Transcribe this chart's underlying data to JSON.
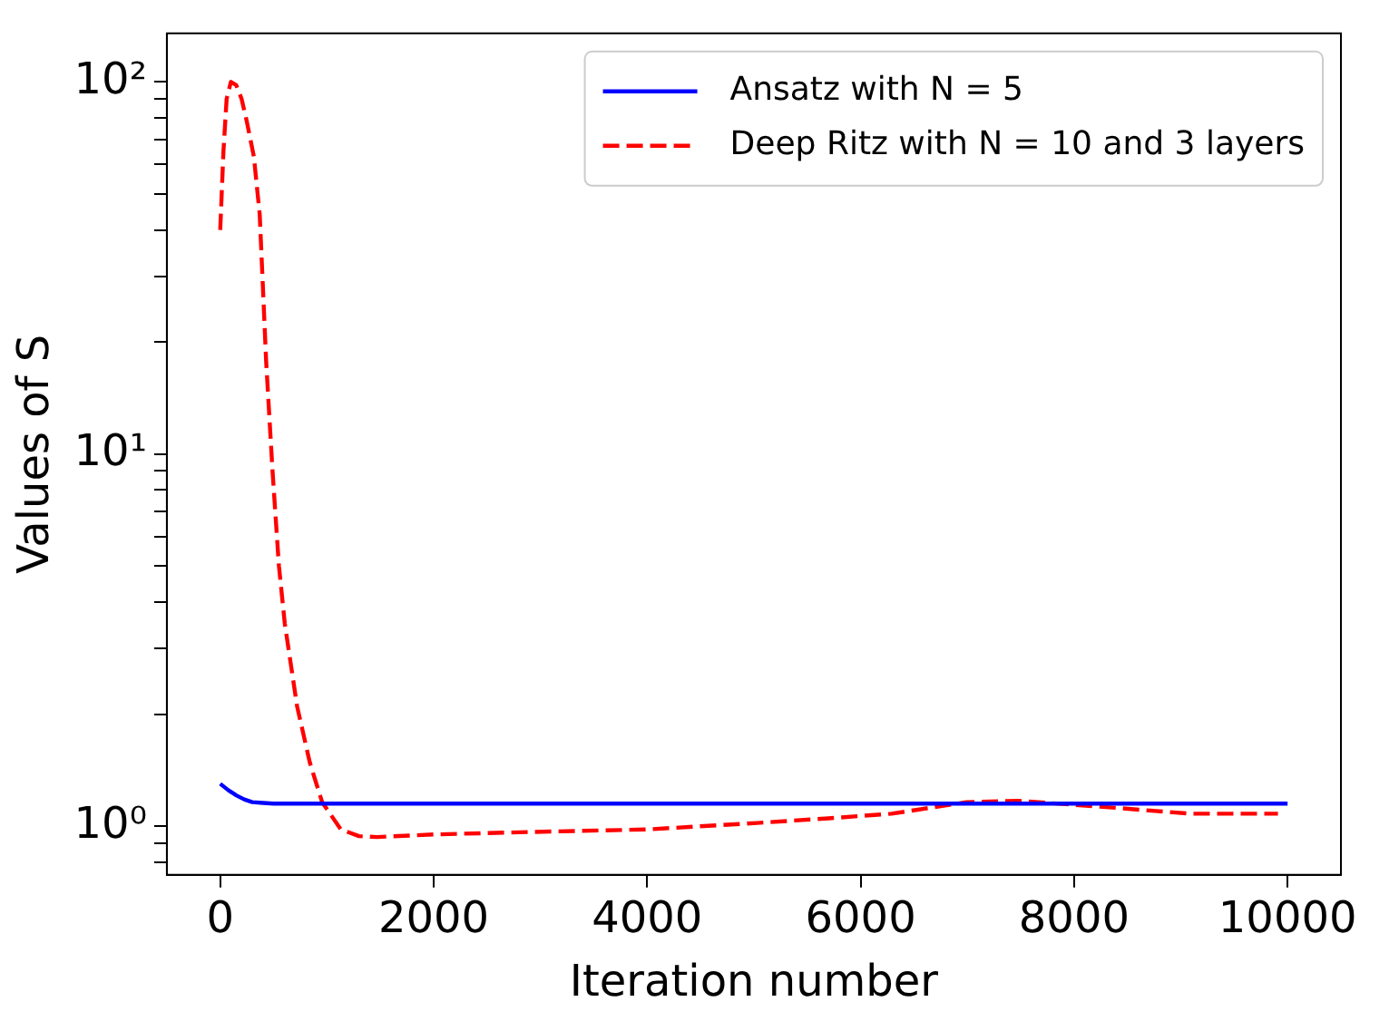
{
  "chart_data": {
    "type": "line",
    "xlabel": "Iteration number",
    "ylabel": "Values of S",
    "log": "y",
    "legend": "top right",
    "grid": false,
    "xlim": [
      -500,
      10500
    ],
    "xticks": [
      0,
      2000,
      4000,
      6000,
      8000,
      10000
    ],
    "ylim": [
      0.74,
      135
    ],
    "yticks": [
      {
        "value": 0.8,
        "label": null
      },
      {
        "value": 0.9,
        "label": null
      },
      {
        "value": 1,
        "label": "10⁰"
      },
      {
        "value": 2,
        "label": null
      },
      {
        "value": 3,
        "label": null
      },
      {
        "value": 4,
        "label": null
      },
      {
        "value": 5,
        "label": null
      },
      {
        "value": 6,
        "label": null
      },
      {
        "value": 7,
        "label": null
      },
      {
        "value": 8,
        "label": null
      },
      {
        "value": 9,
        "label": null
      },
      {
        "value": 10,
        "label": "10¹"
      },
      {
        "value": 20,
        "label": null
      },
      {
        "value": 30,
        "label": null
      },
      {
        "value": 40,
        "label": null
      },
      {
        "value": 50,
        "label": null
      },
      {
        "value": 60,
        "label": null
      },
      {
        "value": 70,
        "label": null
      },
      {
        "value": 80,
        "label": null
      },
      {
        "value": 90,
        "label": null
      },
      {
        "value": 100,
        "label": "10²"
      }
    ],
    "series": [
      {
        "name": "Ansatz with N = 5",
        "color": "#0000ff",
        "line_style": "solid",
        "x": [
          0,
          75,
          150,
          225,
          300,
          400,
          500,
          700,
          1000,
          2000,
          4000,
          6000,
          8000,
          10000
        ],
        "values": [
          1.3,
          1.25,
          1.21,
          1.18,
          1.16,
          1.155,
          1.15,
          1.15,
          1.15,
          1.15,
          1.15,
          1.15,
          1.15,
          1.15
        ]
      },
      {
        "name": "Deep Ritz with N = 10 and 3 layers",
        "color": "#ff0000",
        "line_style": "dashed",
        "x": [
          0,
          30,
          60,
          100,
          150,
          200,
          250,
          315,
          370,
          430,
          490,
          550,
          605,
          720,
          840,
          955,
          1130,
          1300,
          1470,
          2000,
          2940,
          4000,
          5030,
          5700,
          6290,
          6990,
          7480,
          8390,
          9090,
          9910
        ],
        "values": [
          40,
          65,
          90,
          100,
          98,
          90,
          78,
          63,
          44,
          17.8,
          9,
          5,
          3.5,
          2.1,
          1.48,
          1.16,
          0.98,
          0.94,
          0.935,
          0.95,
          0.965,
          0.98,
          1.02,
          1.05,
          1.08,
          1.16,
          1.17,
          1.12,
          1.08,
          1.08
        ]
      }
    ]
  }
}
